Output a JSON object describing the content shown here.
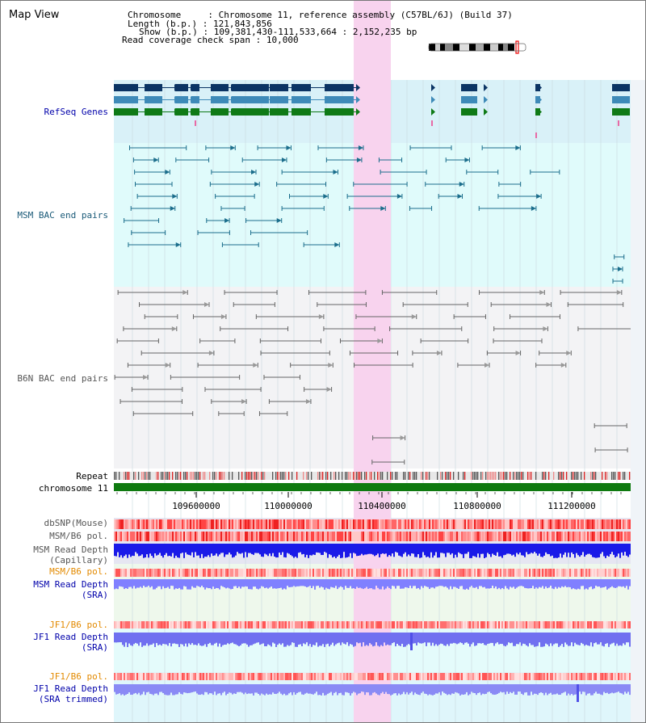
{
  "view": {
    "title": "Map View"
  },
  "info": {
    "chromosome_label": "Chromosome",
    "chromosome_value": "Chromosome 11, reference assembly (C57BL/6J) (Build 37)",
    "length_label": "Length (b.p.)",
    "length_value": "121,843,856",
    "show_label": "Show (b.p.)",
    "show_value": "109,381,430-111,533,664 : 2,152,235 bp",
    "coverage_label": "Read coverage check span",
    "coverage_value": "10,000"
  },
  "tracks": {
    "refseq": {
      "label": "RefSeq Genes"
    },
    "msm_bac": {
      "label": "MSM BAC end pairs"
    },
    "b6n_bac": {
      "label": "B6N BAC end pairs"
    },
    "repeat": {
      "label": "Repeat"
    },
    "chromosome": {
      "label": "chromosome 11"
    },
    "axis": {
      "ticks": [
        "109600000",
        "110000000",
        "110400000",
        "110800000",
        "111200000"
      ]
    },
    "dbsnp": {
      "label": "dbSNP(Mouse)"
    },
    "msm_pol": {
      "label": "MSM/B6 pol."
    },
    "msm_cap_depth": {
      "label_1": "MSM Read Depth",
      "label_2": "(Capillary)"
    },
    "msm_pol_sra": {
      "label": "MSM/B6 pol."
    },
    "msm_sra_depth": {
      "label_1": "MSM Read Depth",
      "label_2": "(SRA)"
    },
    "jf1_pol": {
      "label": "JF1/B6 pol."
    },
    "jf1_sra_depth": {
      "label_1": "JF1 Read Depth",
      "label_2": "(SRA)"
    },
    "jf1_pol_trim": {
      "label": "JF1/B6 pol."
    },
    "jf1_trim_depth": {
      "label_1": "JF1 Read Depth",
      "label_2": "(SRA trimmed)"
    }
  },
  "colors": {
    "refseq_dark": "#0b3464",
    "refseq_mid": "#3e8ab8",
    "refseq_green": "#0f7a16",
    "msm_bac": "#1b6e8c",
    "b6n_bac": "#666666",
    "highlight": "#f8d3ee",
    "chromosome_bar": "#0f7a10",
    "label_blue": "#0000aa",
    "label_orange": "#e38a00",
    "label_msm": "#1a5a78",
    "label_b6n": "#555555"
  }
}
